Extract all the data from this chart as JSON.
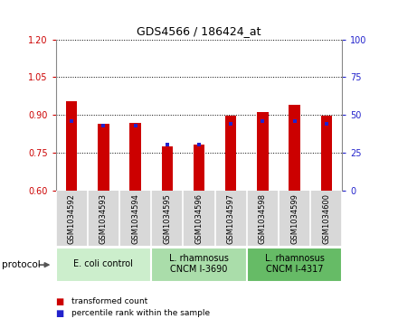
{
  "title": "GDS4566 / 186424_at",
  "samples": [
    "GSM1034592",
    "GSM1034593",
    "GSM1034594",
    "GSM1034595",
    "GSM1034596",
    "GSM1034597",
    "GSM1034598",
    "GSM1034599",
    "GSM1034600"
  ],
  "transformed_count": [
    0.955,
    0.865,
    0.868,
    0.775,
    0.782,
    0.895,
    0.912,
    0.94,
    0.898
  ],
  "percentile_rank": [
    46,
    43,
    43,
    30,
    30,
    44,
    46,
    46,
    44
  ],
  "ylim_left": [
    0.6,
    1.2
  ],
  "ylim_right": [
    0,
    100
  ],
  "yticks_left": [
    0.6,
    0.75,
    0.9,
    1.05,
    1.2
  ],
  "yticks_right": [
    0,
    25,
    50,
    75,
    100
  ],
  "bar_color": "#cc0000",
  "dot_color": "#2222cc",
  "bar_width": 0.35,
  "groups": [
    {
      "label": "E. coli control",
      "start": 0,
      "end": 3,
      "color": "#cceecc"
    },
    {
      "label": "L. rhamnosus\nCNCM I-3690",
      "start": 3,
      "end": 6,
      "color": "#aaddaa"
    },
    {
      "label": "L. rhamnosus\nCNCM I-4317",
      "start": 6,
      "end": 9,
      "color": "#66bb66"
    }
  ],
  "protocol_label": "protocol",
  "legend_items": [
    {
      "color": "#cc0000",
      "label": "transformed count"
    },
    {
      "color": "#2222cc",
      "label": "percentile rank within the sample"
    }
  ],
  "title_fontsize": 9,
  "tick_fontsize": 7,
  "sample_fontsize": 6,
  "group_fontsize": 7
}
